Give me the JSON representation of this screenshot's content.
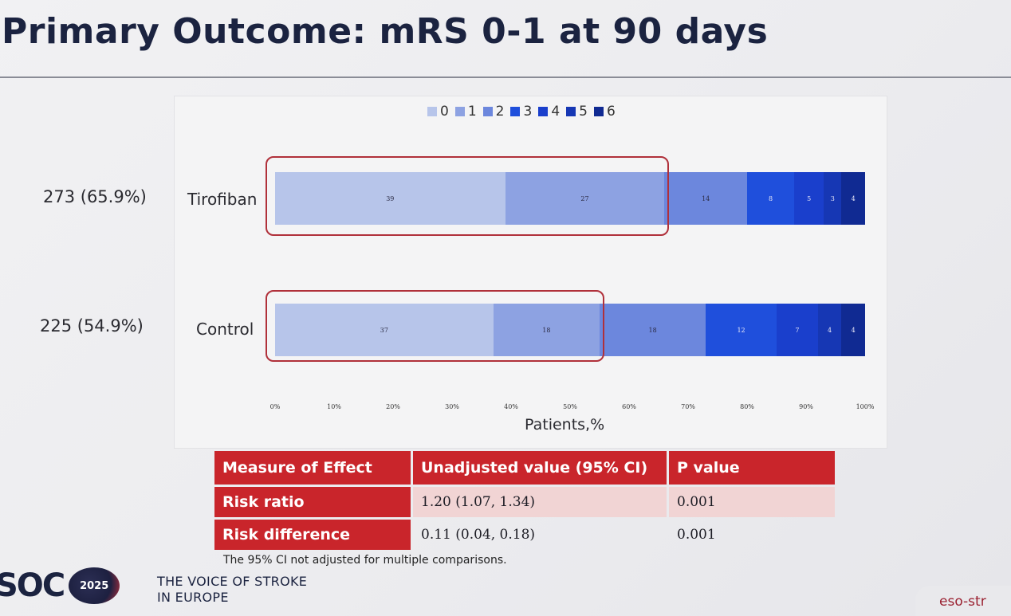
{
  "slide": {
    "title": "Primary Outcome: mRS 0-1 at 90 days",
    "footnote": "The 95% CI not adjusted for multiple comparisons.",
    "logo_text": "SOC",
    "logo_badge": "2025",
    "tagline_line1": "THE VOICE OF STROKE",
    "tagline_line2": "IN EUROPE",
    "corner_text": "eso-str"
  },
  "chart_data": {
    "type": "bar",
    "orientation": "horizontal-stacked-percent",
    "xlabel": "Patients,%",
    "xlim": [
      0,
      100
    ],
    "xticks": [
      "0%",
      "10%",
      "20%",
      "30%",
      "40%",
      "50%",
      "60%",
      "70%",
      "80%",
      "90%",
      "100%"
    ],
    "legend_position": "top",
    "categories": [
      "0",
      "1",
      "2",
      "3",
      "4",
      "5",
      "6"
    ],
    "colors": [
      "#b7c5ea",
      "#8da2e2",
      "#6c87dd",
      "#1f4fdc",
      "#1a3fcc",
      "#1637b4",
      "#102a92"
    ],
    "rows": [
      {
        "label": "Tirofiban",
        "count_label": "273 (65.9%)",
        "values": [
          39,
          27,
          14,
          8,
          5,
          3,
          4
        ],
        "value_labels": [
          "39",
          "27",
          "14",
          "8",
          "5",
          "3",
          "4"
        ],
        "highlight_mrs_0_1": true
      },
      {
        "label": "Control",
        "count_label": "225 (54.9%)",
        "values": [
          37,
          18,
          18,
          12,
          7,
          4,
          4
        ],
        "value_labels": [
          "37",
          "18",
          "18",
          "12",
          "7",
          "4",
          "4"
        ],
        "highlight_mrs_0_1": true
      }
    ],
    "gridlines": false
  },
  "effect_table": {
    "headers": [
      "Measure of Effect",
      "Unadjusted value (95% CI)",
      "P value"
    ],
    "rows": [
      {
        "measure": "Risk ratio",
        "value": "1.20 (1.07, 1.34)",
        "p": "0.001"
      },
      {
        "measure": "Risk difference",
        "value": "0.11 (0.04, 0.18)",
        "p": "0.001"
      }
    ]
  }
}
